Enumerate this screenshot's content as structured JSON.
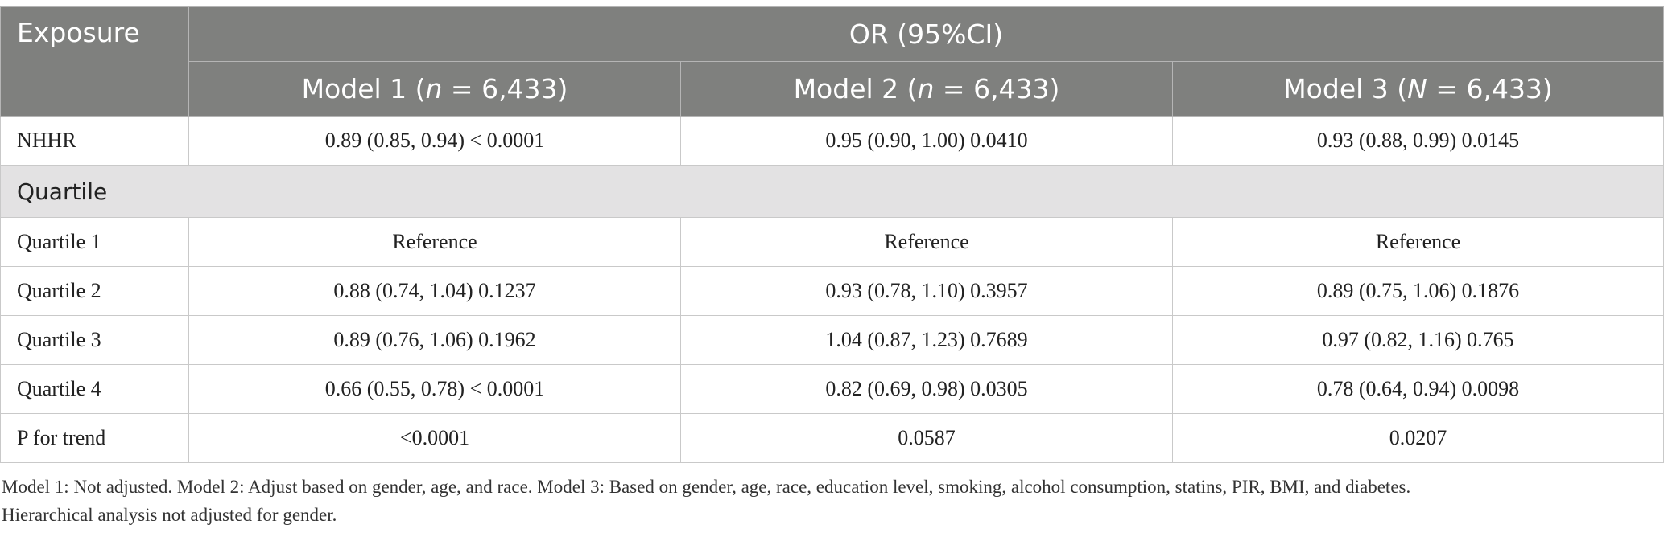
{
  "table": {
    "header": {
      "exposure": "Exposure",
      "group": "OR (95%CI)",
      "models": [
        {
          "prefix": "Model 1 (",
          "var": "n",
          "suffix": " = 6,433)"
        },
        {
          "prefix": "Model 2 (",
          "var": "n",
          "suffix": " = 6,433)"
        },
        {
          "prefix": "Model 3 (",
          "var": "N",
          "suffix": " = 6,433)"
        }
      ]
    },
    "rows": [
      {
        "label": "NHHR",
        "values": [
          "0.89 (0.85, 0.94) < 0.0001",
          "0.95 (0.90, 1.00) 0.0410",
          "0.93 (0.88, 0.99) 0.0145"
        ]
      }
    ],
    "section": "Quartile",
    "section_rows": [
      {
        "label": "Quartile 1",
        "values": [
          "Reference",
          "Reference",
          "Reference"
        ]
      },
      {
        "label": "Quartile 2",
        "values": [
          "0.88 (0.74, 1.04) 0.1237",
          "0.93 (0.78, 1.10) 0.3957",
          "0.89 (0.75, 1.06) 0.1876"
        ]
      },
      {
        "label": "Quartile 3",
        "values": [
          "0.89 (0.76, 1.06) 0.1962",
          "1.04 (0.87, 1.23) 0.7689",
          "0.97 (0.82, 1.16) 0.765"
        ]
      },
      {
        "label": "Quartile 4",
        "values": [
          "0.66 (0.55, 0.78) < 0.0001",
          "0.82 (0.69, 0.98) 0.0305",
          "0.78 (0.64, 0.94) 0.0098"
        ]
      },
      {
        "label": "P for trend",
        "values": [
          "<0.0001",
          "0.0587",
          "0.0207"
        ]
      }
    ]
  },
  "footnote": {
    "line1": "Model 1: Not adjusted. Model 2: Adjust based on gender, age, and race. Model 3: Based on gender, age, race, education level, smoking, alcohol consumption, statins, PIR, BMI, and diabetes.",
    "line2": "Hierarchical analysis not adjusted for gender."
  }
}
